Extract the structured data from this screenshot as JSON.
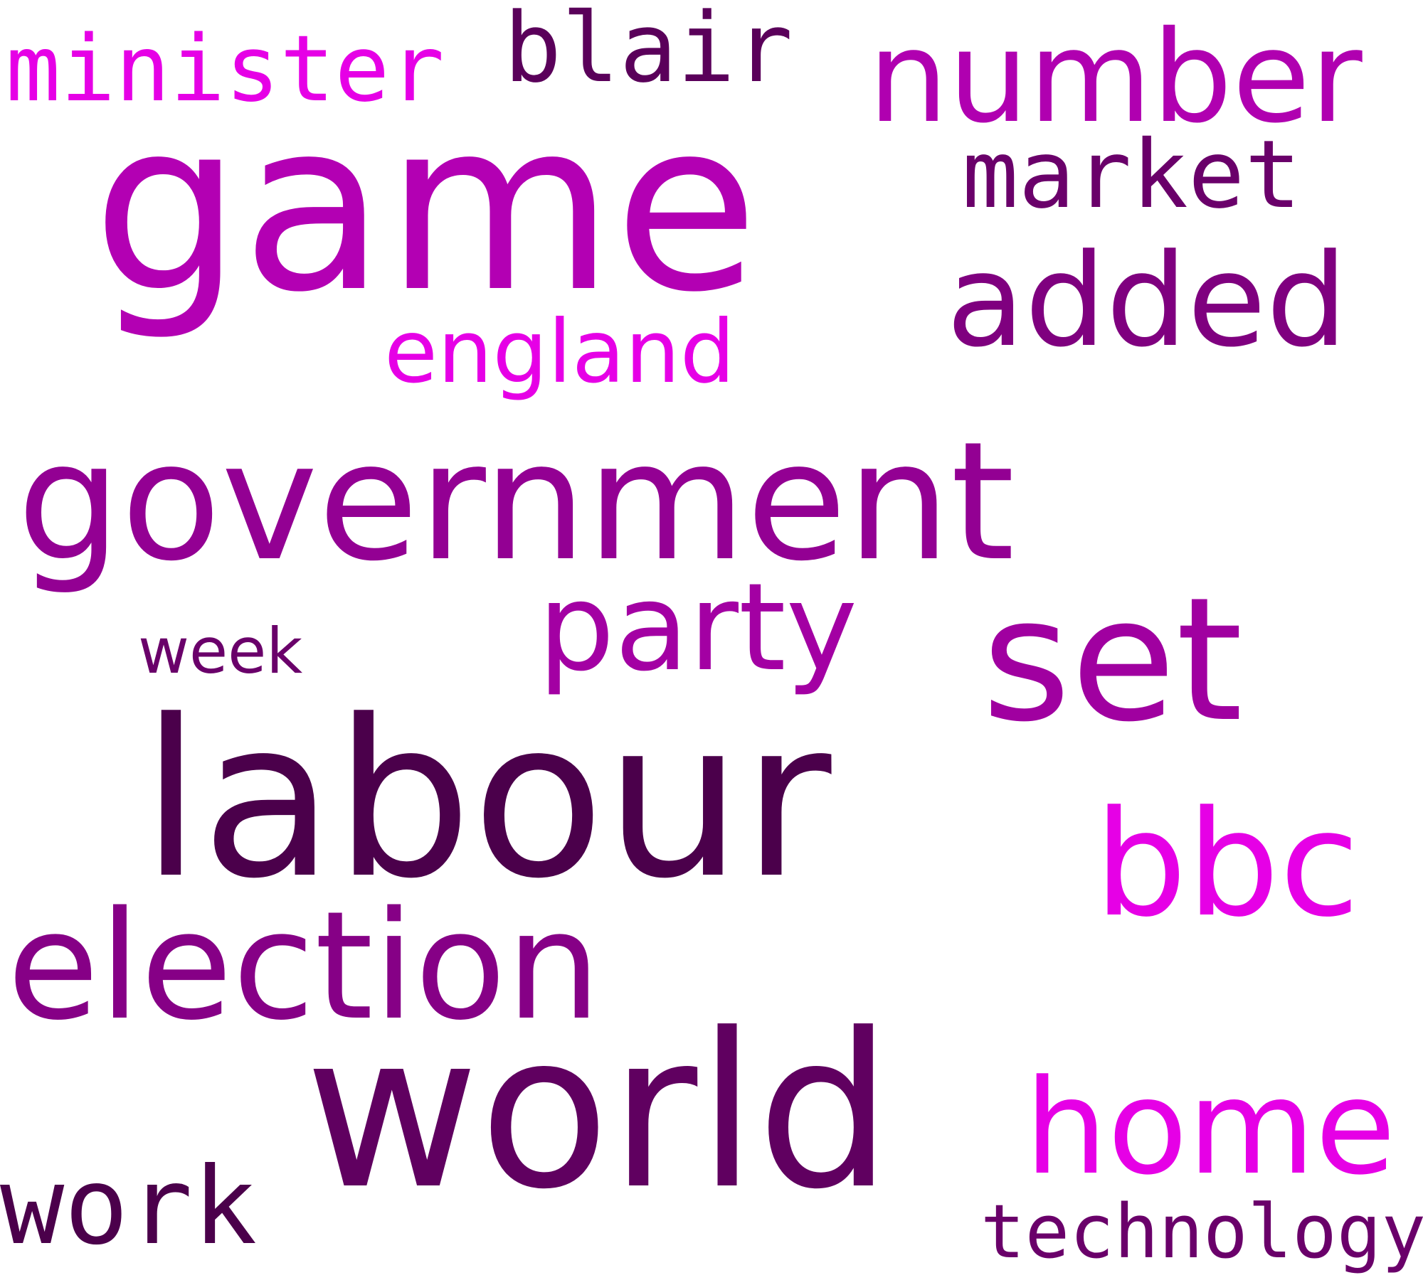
{
  "words": {
    "game": {
      "text": "game",
      "color": "#b300b3"
    },
    "number": {
      "text": "number",
      "color": "#b000b0"
    },
    "minister": {
      "text": "minister",
      "color": "#e600e6"
    },
    "blair": {
      "text": "blair",
      "color": "#5a005a"
    },
    "market": {
      "text": "market",
      "color": "#6a006a"
    },
    "added": {
      "text": "added",
      "color": "#7f007f"
    },
    "england": {
      "text": "england",
      "color": "#e600e6"
    },
    "government": {
      "text": "government",
      "color": "#930093"
    },
    "party": {
      "text": "party",
      "color": "#a300a3"
    },
    "set": {
      "text": "set",
      "color": "#a000a0"
    },
    "week": {
      "text": "week",
      "color": "#6a006a"
    },
    "labour": {
      "text": "labour",
      "color": "#4b004b"
    },
    "bbc": {
      "text": "bbc",
      "color": "#e600e6"
    },
    "election": {
      "text": "election",
      "color": "#860086"
    },
    "world": {
      "text": "world",
      "color": "#600060"
    },
    "home": {
      "text": "home",
      "color": "#e600e6"
    },
    "work": {
      "text": "work",
      "color": "#4b004b"
    },
    "technology": {
      "text": "technology",
      "color": "#6a006a"
    }
  }
}
